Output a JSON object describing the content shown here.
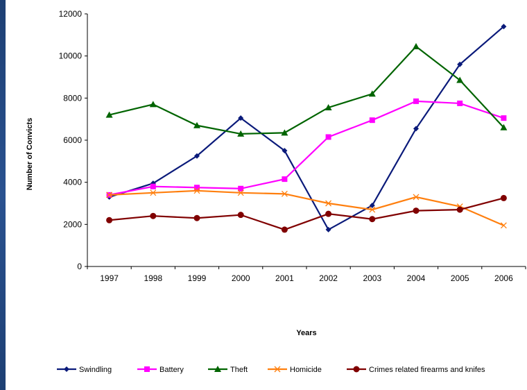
{
  "chart_data": {
    "type": "line",
    "title": "",
    "xlabel": "Years",
    "ylabel": "Number of Convicts",
    "categories": [
      "1997",
      "1998",
      "1999",
      "2000",
      "2001",
      "2002",
      "2003",
      "2004",
      "2005",
      "2006"
    ],
    "ylim": [
      0,
      12000
    ],
    "yticks": [
      0,
      2000,
      4000,
      6000,
      8000,
      10000,
      12000
    ],
    "grid": false,
    "legend_position": "bottom",
    "series": [
      {
        "name": "Swindling",
        "color": "#0a1a7a",
        "marker": "diamond",
        "values": [
          3300,
          3950,
          5250,
          7050,
          5500,
          1750,
          2900,
          6550,
          9600,
          11400
        ]
      },
      {
        "name": "Battery",
        "color": "#ff00ff",
        "marker": "square",
        "values": [
          3400,
          3800,
          3750,
          3700,
          4150,
          6150,
          6950,
          7850,
          7750,
          7050
        ]
      },
      {
        "name": "Theft",
        "color": "#006400",
        "marker": "triangle",
        "values": [
          7200,
          7700,
          6700,
          6300,
          6350,
          7550,
          8200,
          10450,
          8850,
          6600
        ]
      },
      {
        "name": "Homicide",
        "color": "#ff7f0e",
        "marker": "x",
        "values": [
          3400,
          3500,
          3600,
          3500,
          3450,
          3000,
          2700,
          3300,
          2850,
          1950
        ]
      },
      {
        "name": "Crimes related firearms and knifes",
        "color": "#800000",
        "marker": "circle",
        "values": [
          2200,
          2400,
          2300,
          2450,
          1750,
          2500,
          2250,
          2650,
          2700,
          3250
        ]
      }
    ]
  }
}
